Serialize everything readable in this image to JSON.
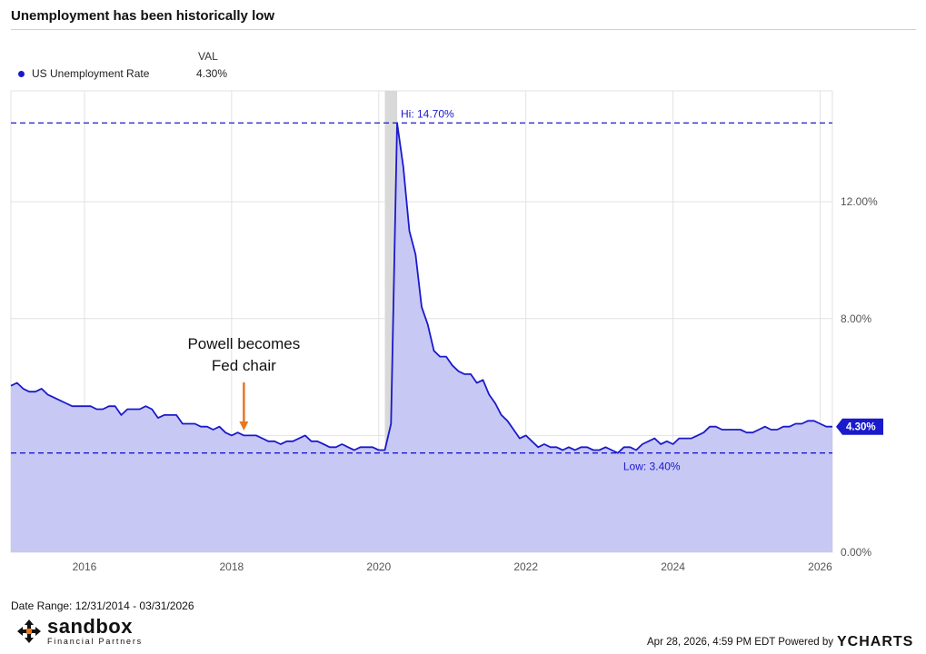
{
  "header": {
    "title": "Unemployment has been historically low"
  },
  "legend": {
    "column_header": "VAL",
    "series_name": "US Unemployment Rate",
    "series_value": "4.30%",
    "color": "#1a1acc"
  },
  "chart_data": {
    "type": "area",
    "title": "Unemployment has been historically low",
    "series": [
      {
        "name": "US Unemployment Rate",
        "color": "#1a1acc",
        "fill": "#c8c8f4"
      }
    ],
    "x_start": "2015-01",
    "x_end": "2026-03",
    "x_range": [
      "2014-12-31",
      "2026-03-31"
    ],
    "y_range": [
      0,
      15.8
    ],
    "x_ticks": [
      "2016",
      "2018",
      "2020",
      "2022",
      "2024",
      "2026"
    ],
    "y_ticks": [
      {
        "value": 0,
        "label": "0.00%"
      },
      {
        "value": 4,
        "label": ""
      },
      {
        "value": 8,
        "label": "8.00%"
      },
      {
        "value": 12,
        "label": "12.00%"
      }
    ],
    "values": [
      5.7,
      5.8,
      5.6,
      5.5,
      5.5,
      5.6,
      5.4,
      5.3,
      5.2,
      5.1,
      5.0,
      5.0,
      5.0,
      5.0,
      4.9,
      4.9,
      5.0,
      5.0,
      4.7,
      4.9,
      4.9,
      4.9,
      5.0,
      4.9,
      4.6,
      4.7,
      4.7,
      4.7,
      4.4,
      4.4,
      4.4,
      4.3,
      4.3,
      4.2,
      4.3,
      4.1,
      4.0,
      4.1,
      4.0,
      4.0,
      4.0,
      3.9,
      3.8,
      3.8,
      3.7,
      3.8,
      3.8,
      3.9,
      4.0,
      3.8,
      3.8,
      3.7,
      3.6,
      3.6,
      3.7,
      3.6,
      3.5,
      3.6,
      3.6,
      3.6,
      3.5,
      3.5,
      4.4,
      14.7,
      13.2,
      11.0,
      10.2,
      8.4,
      7.8,
      6.9,
      6.7,
      6.7,
      6.4,
      6.2,
      6.1,
      6.1,
      5.8,
      5.9,
      5.4,
      5.1,
      4.7,
      4.5,
      4.2,
      3.9,
      4.0,
      3.8,
      3.6,
      3.7,
      3.6,
      3.6,
      3.5,
      3.6,
      3.5,
      3.6,
      3.6,
      3.5,
      3.5,
      3.6,
      3.5,
      3.4,
      3.6,
      3.6,
      3.5,
      3.7,
      3.8,
      3.9,
      3.7,
      3.8,
      3.7,
      3.9,
      3.9,
      3.9,
      4.0,
      4.1,
      4.3,
      4.3,
      4.2,
      4.2,
      4.2,
      4.2,
      4.1,
      4.1,
      4.2,
      4.3,
      4.2,
      4.2,
      4.3,
      4.3,
      4.4,
      4.4,
      4.5,
      4.5,
      4.4,
      4.3,
      4.3
    ],
    "hi": {
      "value": 14.7,
      "label": "Hi: 14.70%"
    },
    "low": {
      "value": 3.4,
      "label": "Low: 3.40%"
    },
    "last": {
      "value": 4.3,
      "label": "4.30%"
    },
    "recession_band": {
      "start": "2020-02",
      "end": "2020-04"
    },
    "annotation": {
      "lines": [
        "Powell becomes",
        "Fed chair"
      ],
      "x": "2018-03",
      "color": "#e87722"
    }
  },
  "footer": {
    "date_range": "Date Range: 12/31/2014 - 03/31/2026",
    "timestamp": "Apr 28, 2026, 4:59 PM EDT Powered by",
    "brand": "YCHARTS"
  },
  "logo": {
    "name": "sandbox",
    "tagline": "Financial Partners"
  }
}
